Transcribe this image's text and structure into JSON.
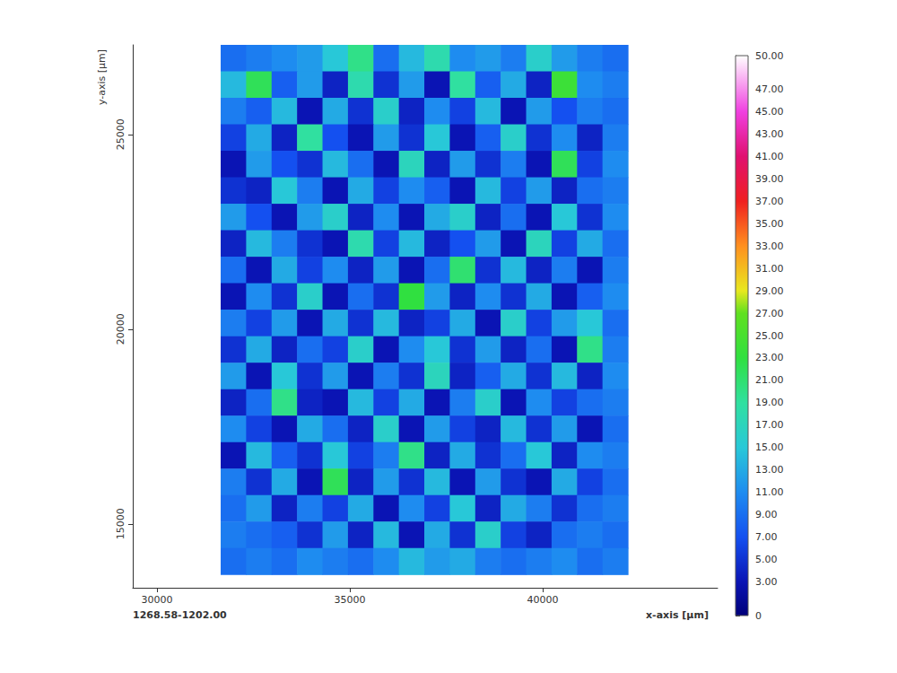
{
  "chart_data": {
    "type": "heatmap",
    "x_label": "x-axis [µm]",
    "y_label": "y-axis [µm]",
    "annotation": "1268.58-1202.00",
    "xlim": [
      29370,
      44535
    ],
    "xticks": [
      30000,
      35000,
      40000
    ],
    "ylim": [
      13360,
      27300
    ],
    "yticks": [
      15000,
      20000,
      25000
    ],
    "grid": false,
    "cells": {
      "x": [
        31980,
        32640,
        33300,
        33960,
        34620,
        35280,
        35940,
        36600,
        37260,
        37920,
        38580,
        39240,
        39900,
        40560,
        41220,
        41880
      ],
      "y": [
        26960,
        26280,
        25600,
        24920,
        24240,
        23560,
        22880,
        22200,
        21520,
        20840,
        20160,
        19480,
        18800,
        18120,
        17440,
        16760,
        16080,
        15400,
        14720,
        14040
      ],
      "values": [
        [
          9,
          10,
          11,
          12,
          15,
          20,
          9,
          14,
          18,
          11,
          12,
          10,
          16,
          12,
          10,
          9
        ],
        [
          14,
          22,
          8,
          12,
          4,
          18,
          5,
          12,
          3,
          19,
          8,
          13,
          4,
          24,
          11,
          10
        ],
        [
          10,
          8,
          14,
          3,
          13,
          5,
          16,
          4,
          11,
          6,
          14,
          3,
          12,
          7,
          10,
          9
        ],
        [
          6,
          13,
          4,
          19,
          7,
          3,
          12,
          5,
          15,
          3,
          8,
          16,
          5,
          11,
          4,
          10
        ],
        [
          3,
          12,
          7,
          5,
          14,
          9,
          3,
          17,
          4,
          12,
          5,
          10,
          3,
          22,
          6,
          11
        ],
        [
          5,
          4,
          15,
          10,
          3,
          13,
          6,
          11,
          8,
          3,
          14,
          6,
          12,
          4,
          9,
          10
        ],
        [
          12,
          7,
          3,
          12,
          16,
          4,
          11,
          3,
          13,
          16,
          4,
          9,
          3,
          15,
          5,
          11
        ],
        [
          4,
          14,
          10,
          5,
          3,
          18,
          6,
          14,
          4,
          7,
          12,
          3,
          17,
          6,
          13,
          9
        ],
        [
          9,
          3,
          13,
          6,
          11,
          4,
          12,
          3,
          9,
          21,
          5,
          14,
          4,
          10,
          3,
          10
        ],
        [
          3,
          11,
          5,
          16,
          3,
          9,
          5,
          23,
          12,
          4,
          11,
          5,
          13,
          3,
          8,
          11
        ],
        [
          10,
          6,
          12,
          3,
          13,
          5,
          14,
          4,
          6,
          13,
          3,
          16,
          6,
          12,
          15,
          9
        ],
        [
          5,
          13,
          4,
          9,
          6,
          16,
          3,
          11,
          15,
          5,
          12,
          4,
          9,
          3,
          20,
          10
        ],
        [
          12,
          3,
          15,
          5,
          12,
          3,
          10,
          5,
          17,
          4,
          8,
          13,
          5,
          14,
          4,
          11
        ],
        [
          4,
          9,
          20,
          4,
          3,
          14,
          6,
          13,
          3,
          10,
          16,
          3,
          11,
          6,
          9,
          10
        ],
        [
          11,
          6,
          3,
          13,
          9,
          4,
          16,
          3,
          12,
          6,
          4,
          14,
          5,
          12,
          3,
          9
        ],
        [
          3,
          14,
          8,
          5,
          15,
          6,
          10,
          20,
          4,
          13,
          5,
          9,
          15,
          4,
          11,
          10
        ],
        [
          10,
          5,
          13,
          3,
          22,
          4,
          12,
          5,
          14,
          3,
          12,
          5,
          3,
          13,
          6,
          9
        ],
        [
          9,
          12,
          4,
          10,
          6,
          13,
          3,
          11,
          6,
          15,
          4,
          13,
          10,
          5,
          9,
          10
        ],
        [
          10,
          9,
          8,
          5,
          12,
          4,
          14,
          3,
          13,
          5,
          16,
          6,
          4,
          9,
          10,
          9
        ],
        [
          9,
          10,
          9,
          11,
          10,
          9,
          11,
          14,
          12,
          13,
          10,
          9,
          10,
          11,
          9,
          10
        ]
      ]
    },
    "color_range": [
      0,
      50
    ],
    "color_ticks": [
      0,
      {
        "value": 3,
        "label": "3.00"
      },
      {
        "value": 5,
        "label": "5.00"
      },
      {
        "value": 7,
        "label": "7.00"
      },
      {
        "value": 9,
        "label": "9.00"
      },
      {
        "value": 11,
        "label": "11.00"
      },
      {
        "value": 13,
        "label": "13.00"
      },
      {
        "value": 15,
        "label": "15.00"
      },
      {
        "value": 17,
        "label": "17.00"
      },
      {
        "value": 19,
        "label": "19.00"
      },
      {
        "value": 21,
        "label": "21.00"
      },
      {
        "value": 23,
        "label": "23.00"
      },
      {
        "value": 25,
        "label": "25.00"
      },
      {
        "value": 27,
        "label": "27.00"
      },
      {
        "value": 29,
        "label": "29.00"
      },
      {
        "value": 31,
        "label": "31.00"
      },
      {
        "value": 33,
        "label": "33.00"
      },
      {
        "value": 35,
        "label": "35.00"
      },
      {
        "value": 37,
        "label": "37.00"
      },
      {
        "value": 39,
        "label": "39.00"
      },
      {
        "value": 41,
        "label": "41.00"
      },
      {
        "value": 43,
        "label": "43.00"
      },
      {
        "value": 45,
        "label": "45.00"
      },
      {
        "value": 47,
        "label": "47.00"
      },
      {
        "value": 50,
        "label": "50.00"
      }
    ]
  }
}
